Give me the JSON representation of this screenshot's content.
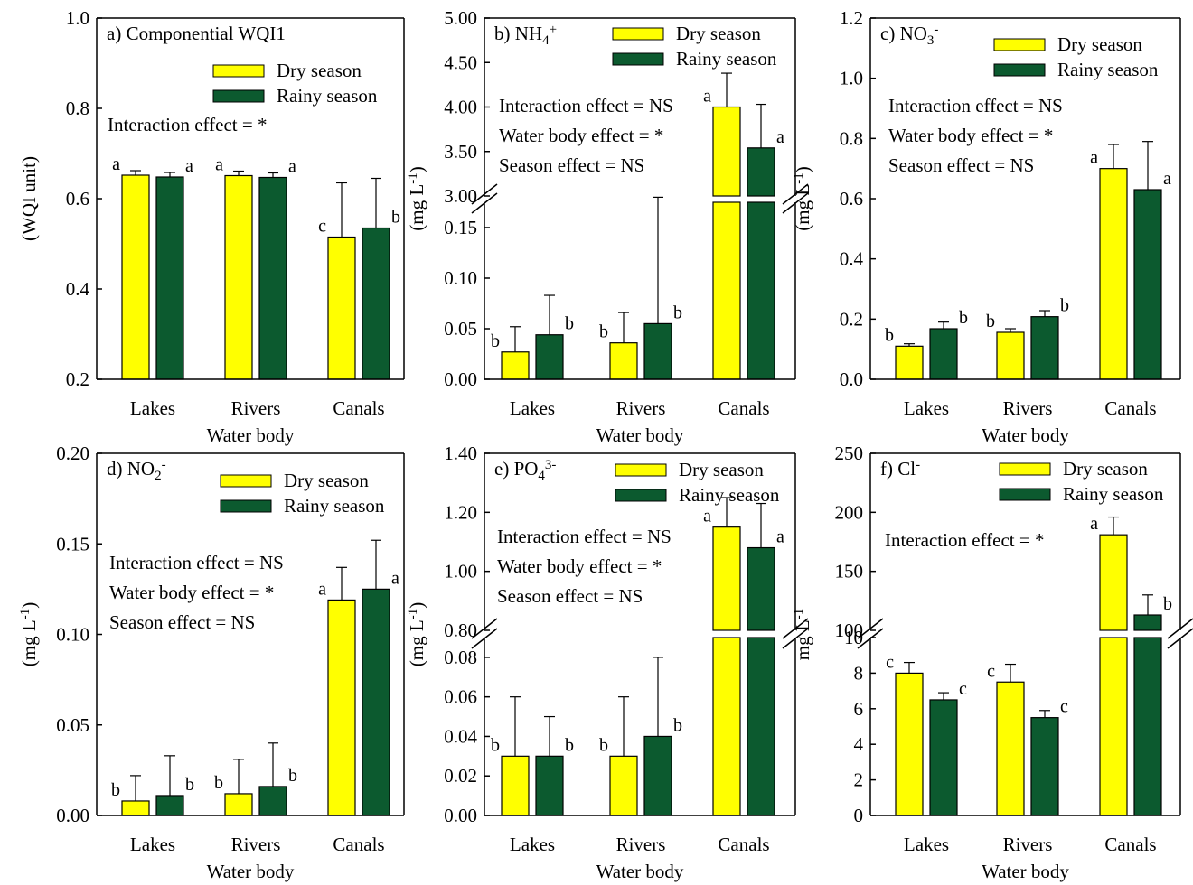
{
  "colors": {
    "dry": "#ffff00",
    "rainy": "#0c5a2f",
    "axis": "#000000"
  },
  "chart_data": [
    {
      "type": "bar",
      "title": "a) Componential WQI1",
      "xlabel": "Water body",
      "ylabel": "(WQI unit)",
      "categories": [
        "Lakes",
        "Rivers",
        "Canals"
      ],
      "ylim": [
        0.2,
        1.0
      ],
      "yticks": [
        "0.2",
        "0.4",
        "0.6",
        "0.8",
        "1.0"
      ],
      "series": [
        {
          "name": "Dry season",
          "values": [
            0.652,
            0.651,
            0.515
          ],
          "errors": [
            0.01,
            0.01,
            0.12
          ],
          "letters": [
            "a",
            "a",
            "c"
          ]
        },
        {
          "name": "Rainy season",
          "values": [
            0.648,
            0.647,
            0.535
          ],
          "errors": [
            0.01,
            0.01,
            0.11
          ],
          "letters": [
            "a",
            "a",
            "b"
          ]
        }
      ],
      "annotations": [
        "Interaction effect = *"
      ]
    },
    {
      "type": "bar",
      "title": "b) NH",
      "title_sub": "4",
      "title_sup": "+",
      "xlabel": "Water body",
      "ylabel": "(mg L",
      "ylabel_sup": "-1",
      "ylabel_end": ")",
      "categories": [
        "Lakes",
        "Rivers",
        "Canals"
      ],
      "broken_axis": true,
      "lower_ylim": [
        0,
        0.175
      ],
      "lower_yticks": [
        "0.00",
        "0.05",
        "0.10",
        "0.15"
      ],
      "upper_ylim": [
        3.0,
        5.0
      ],
      "upper_yticks": [
        "3.00",
        "3.50",
        "4.00",
        "4.50",
        "5.00"
      ],
      "series": [
        {
          "name": "Dry season",
          "values": [
            0.027,
            0.036,
            4.0
          ],
          "errors": [
            0.025,
            0.03,
            0.38
          ],
          "letters": [
            "b",
            "b",
            "a"
          ]
        },
        {
          "name": "Rainy season",
          "values": [
            0.044,
            0.055,
            3.54
          ],
          "errors": [
            0.039,
            0.125,
            0.49
          ],
          "letters": [
            "b",
            "b",
            "a"
          ]
        }
      ],
      "annotations": [
        "Interaction effect = NS",
        "Water body effect = *",
        "Season effect = NS"
      ]
    },
    {
      "type": "bar",
      "title": "c) NO",
      "title_sub": "3",
      "title_sup": "-",
      "xlabel": "Water body",
      "ylabel": "(mg L",
      "ylabel_sup": "-1",
      "ylabel_end": ")",
      "categories": [
        "Lakes",
        "Rivers",
        "Canals"
      ],
      "ylim": [
        0,
        1.2
      ],
      "yticks": [
        "0.0",
        "0.2",
        "0.4",
        "0.6",
        "0.8",
        "1.0",
        "1.2"
      ],
      "series": [
        {
          "name": "Dry season",
          "values": [
            0.11,
            0.156,
            0.7
          ],
          "errors": [
            0.008,
            0.012,
            0.08
          ],
          "letters": [
            "b",
            "b",
            "a"
          ]
        },
        {
          "name": "Rainy season",
          "values": [
            0.168,
            0.208,
            0.63
          ],
          "errors": [
            0.022,
            0.02,
            0.16
          ],
          "letters": [
            "b",
            "b",
            "a"
          ]
        }
      ],
      "annotations": [
        "Interaction effect = NS",
        "Water body effect = *",
        "Season effect = NS"
      ]
    },
    {
      "type": "bar",
      "title": "d) NO",
      "title_sub": "2",
      "title_sup": "-",
      "xlabel": "Water body",
      "ylabel": "(mg L",
      "ylabel_sup": "-1",
      "ylabel_end": ")",
      "categories": [
        "Lakes",
        "Rivers",
        "Canals"
      ],
      "ylim": [
        0,
        0.2
      ],
      "yticks": [
        "0.00",
        "0.05",
        "0.10",
        "0.15",
        "0.20"
      ],
      "series": [
        {
          "name": "Dry season",
          "values": [
            0.008,
            0.012,
            0.119
          ],
          "errors": [
            0.014,
            0.019,
            0.018
          ],
          "letters": [
            "b",
            "b",
            "a"
          ]
        },
        {
          "name": "Rainy season",
          "values": [
            0.011,
            0.016,
            0.125
          ],
          "errors": [
            0.022,
            0.024,
            0.027
          ],
          "letters": [
            "b",
            "b",
            "a"
          ]
        }
      ],
      "annotations": [
        "Interaction effect = NS",
        "Water body effect = *",
        "Season effect = NS"
      ]
    },
    {
      "type": "bar",
      "title": "e) PO",
      "title_sub": "4",
      "title_sup": "3-",
      "xlabel": "Water body",
      "ylabel": "(mg L",
      "ylabel_sup": "-1",
      "ylabel_end": ")",
      "categories": [
        "Lakes",
        "Rivers",
        "Canals"
      ],
      "broken_axis": true,
      "lower_ylim": [
        0,
        0.09
      ],
      "lower_yticks": [
        "0.00",
        "0.02",
        "0.04",
        "0.06",
        "0.08"
      ],
      "upper_ylim": [
        0.8,
        1.4
      ],
      "upper_yticks": [
        "0.80",
        "1.00",
        "1.20",
        "1.40"
      ],
      "series": [
        {
          "name": "Dry season",
          "values": [
            0.03,
            0.03,
            1.15
          ],
          "errors": [
            0.03,
            0.03,
            0.1
          ],
          "letters": [
            "b",
            "b",
            "a"
          ]
        },
        {
          "name": "Rainy season",
          "values": [
            0.03,
            0.04,
            1.08
          ],
          "errors": [
            0.02,
            0.04,
            0.15
          ],
          "letters": [
            "b",
            "b",
            "a"
          ]
        }
      ],
      "annotations": [
        "Interaction effect = NS",
        "Water body effect = *",
        "Season effect = NS"
      ]
    },
    {
      "type": "bar",
      "title": "f) Cl",
      "title_sup": "-",
      "xlabel": "Water body",
      "ylabel": "mg L",
      "ylabel_sup": "-1",
      "categories": [
        "Lakes",
        "Rivers",
        "Canals"
      ],
      "broken_axis": true,
      "lower_ylim": [
        0,
        10
      ],
      "lower_yticks": [
        "0",
        "2",
        "4",
        "6",
        "8",
        "10"
      ],
      "upper_ylim": [
        100,
        250
      ],
      "upper_yticks": [
        "100",
        "150",
        "200",
        "250"
      ],
      "series": [
        {
          "name": "Dry season",
          "values": [
            8.0,
            7.5,
            181
          ],
          "errors": [
            0.6,
            1.0,
            15
          ],
          "letters": [
            "c",
            "c",
            "a"
          ]
        },
        {
          "name": "Rainy season",
          "values": [
            6.5,
            5.5,
            113
          ],
          "errors": [
            0.4,
            0.4,
            17
          ],
          "letters": [
            "c",
            "c",
            "b"
          ]
        }
      ],
      "annotations": [
        "Interaction effect = *"
      ]
    }
  ]
}
